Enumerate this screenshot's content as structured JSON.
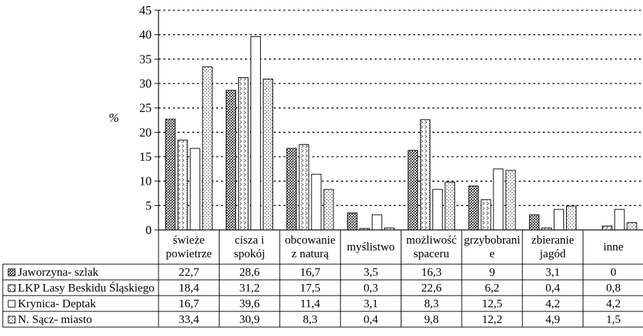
{
  "chart_data": {
    "type": "bar",
    "title": "",
    "xlabel": "",
    "ylabel": "%",
    "ylim": [
      0,
      45
    ],
    "yticks": [
      "0",
      "5",
      "10",
      "15",
      "20",
      "25",
      "30",
      "35",
      "40",
      "45"
    ],
    "grid": "horizontal-dotted",
    "legend": "data-table-below",
    "categories": [
      [
        "świeże",
        "powietrze"
      ],
      [
        "cisza i",
        "spokój"
      ],
      [
        "obcowanie",
        "z naturą"
      ],
      [
        "myślistwo"
      ],
      [
        "możliwość",
        "spaceru"
      ],
      [
        "grzybobrani",
        "e"
      ],
      [
        "zbieranie",
        "jagód"
      ],
      [
        "inne"
      ]
    ],
    "series": [
      {
        "name": "Jaworzyna- szlak",
        "pattern": "dense-dots",
        "values": [
          22.7,
          28.6,
          16.7,
          3.5,
          16.3,
          9,
          3.1,
          0
        ],
        "labels": [
          "22,7",
          "28,6",
          "16,7",
          "3,5",
          "16,3",
          "9",
          "3,1",
          "0"
        ]
      },
      {
        "name": "LKP Lasy Beskidu Śląskiego",
        "pattern": "chevrons",
        "values": [
          18.4,
          31.2,
          17.5,
          0.3,
          22.6,
          6.2,
          0.4,
          0.8
        ],
        "labels": [
          "18,4",
          "31,2",
          "17,5",
          "0,3",
          "22,6",
          "6,2",
          "0,4",
          "0,8"
        ]
      },
      {
        "name": "Krynica- Deptak",
        "pattern": "empty",
        "values": [
          16.7,
          39.6,
          11.4,
          3.1,
          8.3,
          12.5,
          4.2,
          4.2
        ],
        "labels": [
          "16,7",
          "39,6",
          "11,4",
          "3,1",
          "8,3",
          "12,5",
          "4,2",
          "4,2"
        ]
      },
      {
        "name": "N. Sącz- miasto",
        "pattern": "sparse-dots",
        "values": [
          33.4,
          30.9,
          8.3,
          0.4,
          9.8,
          12.2,
          4.9,
          1.5
        ],
        "labels": [
          "33,4",
          "30,9",
          "8,3",
          "0,4",
          "9,8",
          "12,2",
          "4,9",
          "1,5"
        ]
      }
    ]
  }
}
